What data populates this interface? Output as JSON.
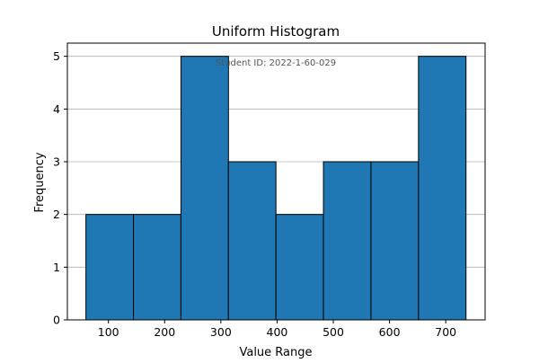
{
  "chart_data": {
    "type": "bar",
    "title": "Uniform Histogram",
    "xlabel": "Value Range",
    "ylabel": "Frequency",
    "annotation": "Student ID: 2022-1-60-029",
    "bin_edges": [
      60,
      144.5,
      229,
      313.5,
      398,
      482.5,
      567,
      651.5,
      736
    ],
    "values": [
      2,
      2,
      5,
      3,
      2,
      3,
      3,
      5
    ],
    "xlim": [
      27,
      770
    ],
    "ylim": [
      0,
      5.25
    ],
    "x_ticks": [
      100,
      200,
      300,
      400,
      500,
      600,
      700
    ],
    "y_ticks": [
      0,
      1,
      2,
      3,
      4,
      5
    ],
    "grid": "y-axis",
    "colors": {
      "bar_fill": "#1f77b4",
      "bar_edge": "#000000",
      "grid": "#b0b0b0",
      "annotation": "#555555"
    }
  }
}
